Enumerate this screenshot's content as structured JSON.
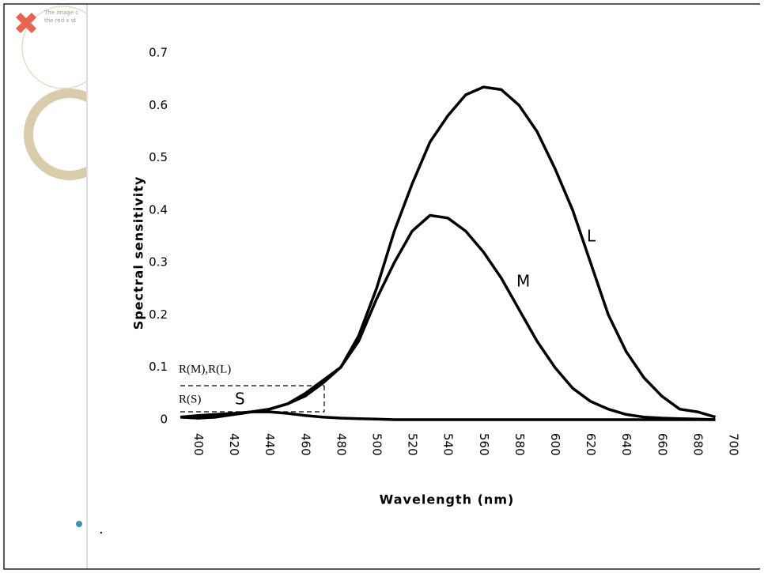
{
  "slide": {
    "broken_image_text": [
      "The image c",
      "the red x st"
    ],
    "bullet_text": "."
  },
  "chart_data": {
    "type": "line",
    "y_label": "Spectral sensitivity",
    "x_label": "Wavelength (nm)",
    "annotations": [
      "R(M),R(L)",
      "R(S)"
    ],
    "x": [
      390,
      400,
      410,
      420,
      430,
      440,
      450,
      460,
      470,
      480,
      490,
      500,
      510,
      520,
      530,
      540,
      550,
      560,
      570,
      580,
      590,
      600,
      610,
      620,
      630,
      640,
      650,
      660,
      670,
      680,
      690
    ],
    "series": [
      {
        "name": "L",
        "color": "#000000",
        "values": [
          0.005,
          0.003,
          0.005,
          0.01,
          0.015,
          0.02,
          0.03,
          0.045,
          0.07,
          0.1,
          0.16,
          0.25,
          0.36,
          0.45,
          0.53,
          0.58,
          0.62,
          0.635,
          0.63,
          0.6,
          0.55,
          0.48,
          0.4,
          0.3,
          0.2,
          0.13,
          0.08,
          0.045,
          0.02,
          0.015,
          0.005
        ]
      },
      {
        "name": "M",
        "color": "#000000",
        "values": [
          0.005,
          0.003,
          0.005,
          0.01,
          0.015,
          0.02,
          0.03,
          0.05,
          0.075,
          0.1,
          0.15,
          0.23,
          0.3,
          0.36,
          0.39,
          0.385,
          0.36,
          0.32,
          0.27,
          0.21,
          0.15,
          0.1,
          0.06,
          0.035,
          0.02,
          0.01,
          0.005,
          0.003,
          0.002,
          0.001,
          0
        ]
      },
      {
        "name": "S",
        "color": "#000000",
        "values": [
          0.005,
          0.008,
          0.01,
          0.012,
          0.015,
          0.015,
          0.012,
          0.008,
          0.005,
          0.003,
          0.002,
          0.001,
          0,
          0,
          0,
          0,
          0,
          0,
          0,
          0,
          0,
          0,
          0,
          0,
          0,
          0,
          0,
          0,
          0,
          0,
          0
        ]
      }
    ],
    "xlim": [
      390,
      700
    ],
    "ylim": [
      0,
      0.7
    ],
    "xticks": [
      400,
      420,
      440,
      460,
      480,
      500,
      520,
      540,
      560,
      580,
      600,
      620,
      640,
      660,
      680,
      700
    ],
    "yticks": [
      0,
      0.1,
      0.2,
      0.3,
      0.4,
      0.5,
      0.6,
      0.7
    ]
  }
}
